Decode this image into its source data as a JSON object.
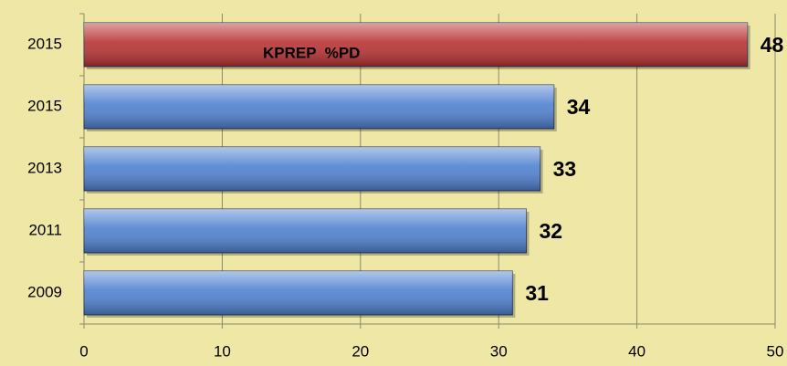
{
  "chart_data": {
    "type": "hbar",
    "categories": [
      "2015",
      "2015",
      "2013",
      "2011",
      "2009"
    ],
    "values": [
      48,
      34,
      33,
      32,
      31
    ],
    "colors": [
      "#b83232",
      "#4f81d0",
      "#4f81d0",
      "#4f81d0",
      "#4f81d0"
    ],
    "annotation": "KPREP  %PD",
    "xlim": [
      0,
      50
    ],
    "xticks": [
      0,
      10,
      20,
      30,
      40,
      50
    ],
    "grid": true
  }
}
